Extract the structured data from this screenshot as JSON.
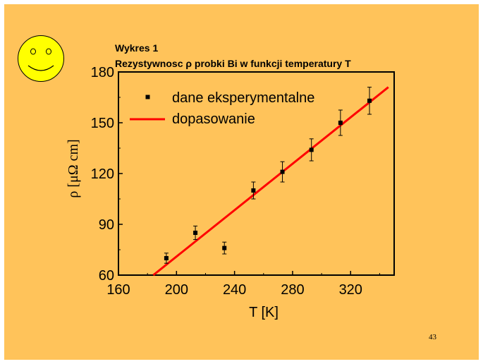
{
  "slide": {
    "background": "#ffc35a",
    "page_number": "43"
  },
  "chart_data": {
    "type": "scatter",
    "caption_line1": "Wykres 1",
    "caption_line2": "Rezystywnosc ρ probki  Bi w funkcji temperatury T",
    "xlabel": "T [K]",
    "ylabel": "ρ [μΩ cm]",
    "xlim": [
      160,
      350
    ],
    "ylim": [
      60,
      180
    ],
    "x_ticks": [
      160,
      200,
      240,
      280,
      320
    ],
    "y_ticks": [
      60,
      90,
      120,
      150,
      180
    ],
    "legend_position": "top-left",
    "series": [
      {
        "name": "dane eksperymentalne",
        "kind": "points-with-error-bars",
        "color": "#000000",
        "x": [
          193,
          213,
          233,
          253,
          273,
          293,
          313,
          333
        ],
        "y": [
          70,
          85,
          76,
          110,
          121,
          134,
          150,
          163
        ],
        "yerr": [
          3,
          4,
          3.5,
          5,
          6,
          6.5,
          7.5,
          8
        ]
      },
      {
        "name": "dopasowanie",
        "kind": "fit-line",
        "color": "#ff0000",
        "x": [
          184,
          346
        ],
        "y": [
          60,
          171
        ]
      }
    ]
  }
}
